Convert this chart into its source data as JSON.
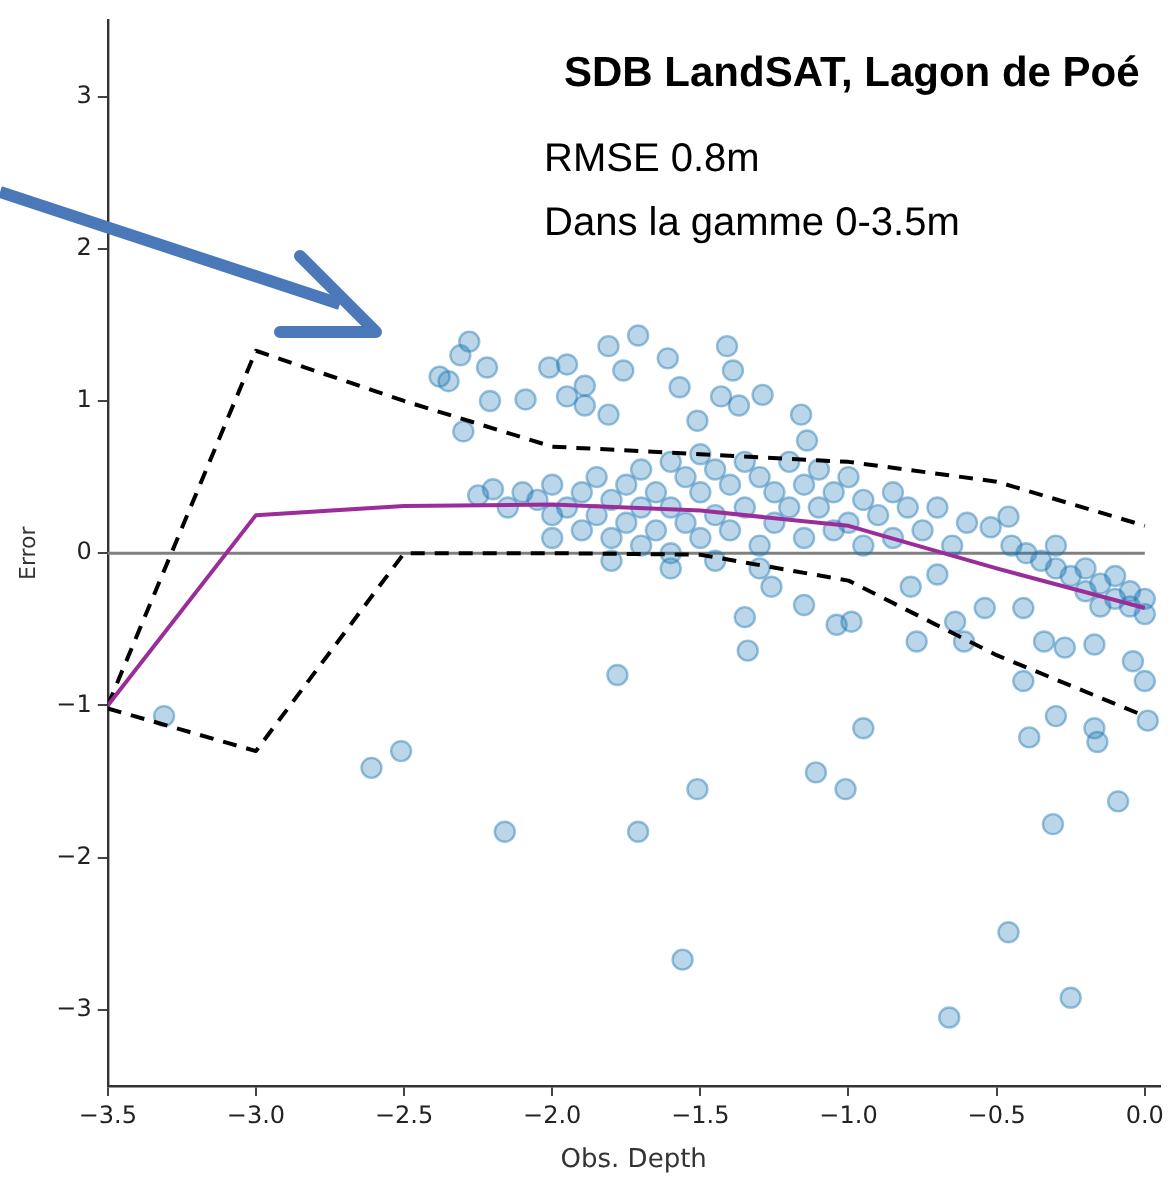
{
  "chart_data": {
    "type": "scatter",
    "title": "SDB LandSAT, Lagon de Poé",
    "annotations": [
      "RMSE 0.8m",
      "Dans la gamme 0-3.5m"
    ],
    "xlabel": "Obs. Depth",
    "ylabel": "Error",
    "xlim": [
      -3.5,
      0.05
    ],
    "ylim": [
      -3.5,
      3.5
    ],
    "xticks": [
      {
        "value": -3.5,
        "label": "−3.5"
      },
      {
        "value": -3,
        "label": "−3.0"
      },
      {
        "value": -2.5,
        "label": "−2.5"
      },
      {
        "value": -2,
        "label": "−2.0"
      },
      {
        "value": -1.5,
        "label": "−1.5"
      },
      {
        "value": -1,
        "label": "−1.0"
      },
      {
        "value": -0.5,
        "label": "−0.5"
      },
      {
        "value": 0,
        "label": "0.0"
      }
    ],
    "yticks": [
      {
        "value": -3,
        "label": "−3"
      },
      {
        "value": -2,
        "label": "−2"
      },
      {
        "value": -1,
        "label": "−1"
      },
      0,
      1,
      2,
      3
    ],
    "grid": false,
    "legend": false,
    "ref_lines": [
      {
        "axis": "y",
        "value": 0,
        "color": "#808080"
      }
    ],
    "series": [
      {
        "color": "#1f77b4",
        "marker": "circle",
        "x": [
          -2.28,
          -2.31,
          -2.38,
          -2.35,
          -2.22,
          -2.21,
          -2.09,
          -2.01,
          -1.95,
          -1.81,
          -1.76,
          -1.89,
          -1.95,
          -1.89,
          -1.81,
          -2.3,
          -3.31,
          -2.61,
          -2.51,
          -2.16,
          -1.78,
          -1.71,
          -1.51,
          -1.11,
          -1.01,
          -0.09,
          -0.31,
          -1.56,
          -0.46,
          -0.25,
          -0.66,
          -1.71,
          -1.61,
          -1.57,
          -1.41,
          -1.39,
          -1.43,
          -1.37,
          -1.29,
          -1.16,
          -1.14,
          -1.51,
          -1.34,
          -1.35,
          -1.26,
          -1.15,
          -1.04,
          -0.99,
          -0.95,
          -0.79,
          -0.77,
          -0.7,
          -0.61,
          -0.54,
          -0.46,
          -0.52,
          -0.41,
          -0.34,
          -0.3,
          -0.27,
          -0.17,
          -0.39,
          -0.17,
          -0.16,
          -0.04,
          0,
          0.01,
          -0.41,
          -0.64,
          -2.25,
          -2.2,
          -2.15,
          -2.1,
          -2.05,
          -2,
          -2,
          -1.95,
          -1.9,
          -1.9,
          -1.85,
          -1.85,
          -1.8,
          -1.8,
          -1.75,
          -1.75,
          -1.7,
          -1.7,
          -1.7,
          -1.65,
          -1.65,
          -1.6,
          -1.6,
          -1.6,
          -1.55,
          -1.55,
          -1.5,
          -1.5,
          -1.5,
          -1.45,
          -1.45,
          -1.45,
          -1.4,
          -1.4,
          -1.35,
          -1.35,
          -1.3,
          -1.3,
          -1.25,
          -1.25,
          -1.2,
          -1.2,
          -1.15,
          -1.15,
          -1.1,
          -1.1,
          -1.05,
          -1.05,
          -1,
          -1,
          -0.95,
          -0.95,
          -0.9,
          -0.85,
          -0.85,
          -0.8,
          -0.75,
          -0.7,
          -0.65,
          -0.6,
          -0.45,
          -0.4,
          -0.35,
          -0.3,
          -0.25,
          -0.2,
          -0.2,
          -0.15,
          -0.1,
          -0.1,
          -0.05,
          -0.05,
          0,
          0,
          -0.3,
          -0.15,
          -2,
          -1.8,
          -1.6,
          -1.3
        ],
        "values": [
          1.39,
          1.3,
          1.16,
          1.13,
          1.22,
          1,
          1.01,
          1.22,
          1.24,
          1.36,
          1.2,
          1.1,
          1.03,
          0.97,
          0.91,
          0.8,
          -1.07,
          -1.41,
          -1.3,
          -1.83,
          -0.8,
          -1.83,
          -1.55,
          -1.44,
          -1.55,
          -1.63,
          -1.78,
          -2.67,
          -2.49,
          -2.92,
          -3.05,
          1.43,
          1.28,
          1.09,
          1.36,
          1.2,
          1.03,
          0.97,
          1.04,
          0.91,
          0.74,
          0.87,
          -0.64,
          -0.42,
          -0.22,
          -0.34,
          -0.47,
          -0.45,
          -1.15,
          -0.22,
          -0.58,
          -0.14,
          -0.58,
          -0.36,
          0.24,
          0.17,
          -0.36,
          -0.58,
          -1.07,
          -0.62,
          -0.6,
          -1.21,
          -1.15,
          -1.24,
          -0.71,
          -0.84,
          -1.1,
          -0.84,
          -0.45,
          0.38,
          0.42,
          0.3,
          0.4,
          0.35,
          0.45,
          0.25,
          0.3,
          0.4,
          0.15,
          0.5,
          0.25,
          0.35,
          0.1,
          0.45,
          0.2,
          0.55,
          0.3,
          0.05,
          0.4,
          0.15,
          0.6,
          0.3,
          0,
          0.5,
          0.2,
          0.65,
          0.4,
          0.1,
          0.55,
          0.25,
          -0.05,
          0.45,
          0.15,
          0.6,
          0.3,
          0.5,
          0.05,
          0.4,
          0.2,
          0.6,
          0.3,
          0.45,
          0.1,
          0.55,
          0.3,
          0.4,
          0.15,
          0.5,
          0.2,
          0.35,
          0.05,
          0.25,
          0.4,
          0.1,
          0.3,
          0.15,
          0.3,
          0.05,
          0.2,
          0.05,
          0,
          -0.05,
          -0.1,
          -0.15,
          -0.1,
          -0.25,
          -0.2,
          -0.3,
          -0.15,
          -0.35,
          -0.25,
          -0.4,
          -0.3,
          0.05,
          -0.35,
          0.1,
          -0.05,
          -0.1,
          -0.1
        ]
      },
      {
        "type": "line",
        "color": "#9b2d9b",
        "marker": "none",
        "line_style": "solid",
        "x": [
          -3.5,
          -3,
          -2.5,
          -2,
          -1.5,
          -1,
          -0.5,
          0
        ],
        "values": [
          -1,
          0.25,
          0.31,
          0.32,
          0.28,
          0.18,
          -0.1,
          -0.36
        ]
      },
      {
        "type": "line",
        "color": "#000000",
        "marker": "none",
        "line_style": "dashed",
        "x": [
          -3.5,
          -3,
          -2.5,
          -2,
          -1.5,
          -1,
          -0.5,
          0
        ],
        "values": [
          -1,
          1.33,
          1,
          0.7,
          0.65,
          0.6,
          0.47,
          0.18
        ]
      },
      {
        "type": "line",
        "color": "#000000",
        "marker": "none",
        "line_style": "dashed",
        "x": [
          -3.5,
          -3,
          -2.5,
          -2,
          -1.5,
          -1,
          -0.5,
          0
        ],
        "values": [
          -1.02,
          -1.3,
          0,
          0,
          -0.01,
          -0.18,
          -0.67,
          -1.07
        ]
      }
    ]
  }
}
